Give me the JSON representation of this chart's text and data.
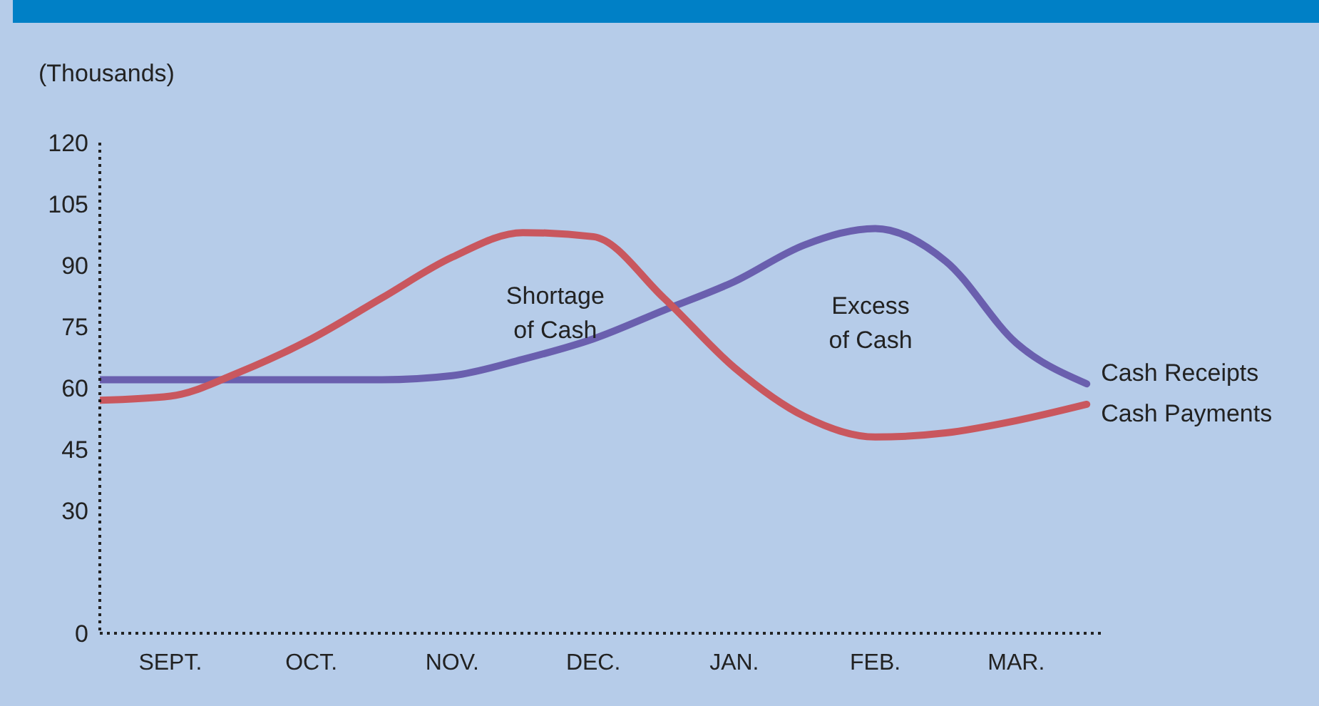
{
  "chart_data": {
    "type": "line",
    "ylabel": "(Thousands)",
    "categories": [
      null,
      "SEPT.",
      null,
      "OCT.",
      null,
      "NOV.",
      null,
      "DEC.",
      null,
      "JAN.",
      null,
      "FEB.",
      null,
      "MAR.",
      null
    ],
    "ylim": [
      0,
      120
    ],
    "yticks": [
      0,
      30,
      45,
      60,
      75,
      90,
      105,
      120
    ],
    "series": [
      {
        "name": "Cash Receipts",
        "color": "#6a5fae",
        "values": [
          62,
          62,
          62,
          62,
          62,
          63,
          67,
          72,
          79,
          86,
          95,
          99,
          91,
          71,
          61
        ]
      },
      {
        "name": "Cash Payments",
        "color": "#c9575e",
        "values": [
          57,
          58,
          64,
          72,
          82,
          92,
          98,
          97,
          82,
          65,
          53,
          48,
          49,
          52,
          56
        ]
      }
    ],
    "annotations": [
      "Shortage of Cash",
      "Excess of Cash"
    ],
    "grid": false,
    "legend": false,
    "marker": "none",
    "line_style": "solid"
  }
}
